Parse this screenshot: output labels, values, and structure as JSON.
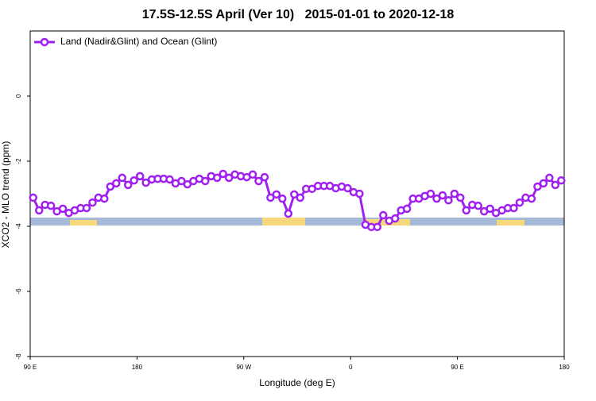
{
  "chart_data": {
    "type": "line",
    "title": "17.5S-12.5S April (Ver 10)   2015-01-01 to 2020-12-18",
    "xlabel": "Longitude (deg E)",
    "ylabel": "XCO2 - MLO trend (ppm)",
    "xlim": [
      90,
      540
    ],
    "ylim": [
      -8,
      2
    ],
    "xticks": [
      {
        "value": 90,
        "label": "90 E"
      },
      180,
      {
        "value": 270,
        "label": "90 W"
      },
      {
        "value": 360,
        "label": "0"
      },
      {
        "value": 450,
        "label": "90 E"
      },
      {
        "value": 540,
        "label": "180"
      }
    ],
    "yticks": [
      -8,
      -6,
      -4,
      -2,
      0
    ],
    "legend": "top-left",
    "x": [
      92.5,
      97.5,
      102.5,
      107.5,
      112.5,
      117.5,
      122.5,
      127.5,
      132.5,
      137.5,
      142.5,
      147.5,
      152.5,
      157.5,
      162.5,
      167.5,
      172.5,
      177.5,
      182.5,
      187.5,
      192.5,
      197.5,
      202.5,
      207.5,
      212.5,
      217.5,
      222.5,
      227.5,
      232.5,
      237.5,
      242.5,
      247.5,
      252.5,
      257.5,
      262.5,
      267.5,
      272.5,
      277.5,
      282.5,
      287.5,
      292.5,
      297.5,
      302.5,
      307.5,
      312.5,
      317.5,
      322.5,
      327.5,
      332.5,
      337.5,
      342.5,
      347.5,
      352.5,
      357.5,
      362.5,
      367.5,
      372.5,
      377.5,
      382.5,
      387.5,
      392.5,
      397.5,
      402.5,
      407.5,
      412.5,
      417.5,
      422.5,
      427.5,
      432.5,
      437.5,
      442.5,
      447.5,
      452.5,
      457.5,
      462.5,
      467.5,
      472.5,
      477.5,
      482.5,
      487.5,
      492.5,
      497.5,
      502.5,
      507.5,
      512.5,
      517.5,
      522.5,
      527.5,
      532.5,
      537.5
    ],
    "series": [
      {
        "name": "Land (Nadir&Glint) and Ocean (Glint)",
        "color": "#a020f0",
        "values": [
          -3.12,
          -3.51,
          -3.34,
          -3.37,
          -3.54,
          -3.46,
          -3.59,
          -3.51,
          -3.44,
          -3.44,
          -3.27,
          -3.12,
          -3.15,
          -2.78,
          -2.68,
          -2.51,
          -2.73,
          -2.59,
          -2.46,
          -2.66,
          -2.56,
          -2.54,
          -2.54,
          -2.56,
          -2.68,
          -2.61,
          -2.71,
          -2.61,
          -2.54,
          -2.61,
          -2.46,
          -2.51,
          -2.39,
          -2.51,
          -2.41,
          -2.46,
          -2.49,
          -2.41,
          -2.61,
          -2.49,
          -3.12,
          -3.02,
          -3.15,
          -3.61,
          -3.02,
          -3.12,
          -2.85,
          -2.85,
          -2.76,
          -2.76,
          -2.76,
          -2.83,
          -2.78,
          -2.83,
          -2.95,
          -3.0,
          -3.95,
          -4.02,
          -4.02,
          -3.66,
          -3.83,
          -3.76,
          -3.51,
          -3.46,
          -3.15,
          -3.15,
          -3.07,
          -3.0,
          -3.15,
          -3.05,
          -3.2,
          -3.0,
          -3.12,
          -3.51,
          -3.34,
          -3.37,
          -3.54,
          -3.46,
          -3.59,
          -3.51,
          -3.44,
          -3.44,
          -3.27,
          -3.12,
          -3.15,
          -2.78,
          -2.68,
          -2.51,
          -2.73,
          -2.59
        ]
      }
    ]
  }
}
